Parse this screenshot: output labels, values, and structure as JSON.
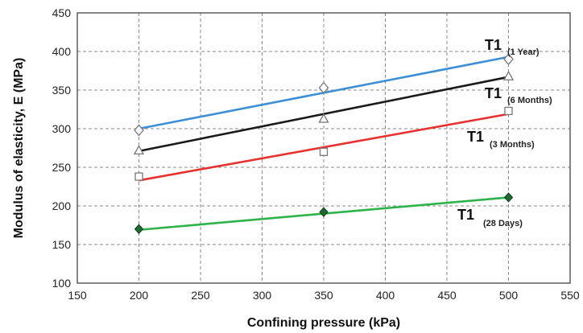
{
  "chart_data": {
    "type": "scatter",
    "title": "",
    "xlabel": "Confining pressure (kPa)",
    "ylabel": "Modulus of elasticity, E (MPa)",
    "xlim": [
      150,
      550
    ],
    "ylim": [
      100,
      450
    ],
    "x_ticks": [
      "150",
      "200",
      "250",
      "300",
      "350",
      "400",
      "450",
      "500",
      "550"
    ],
    "y_ticks": [
      "100",
      "150",
      "200",
      "250",
      "300",
      "350",
      "400",
      "450"
    ],
    "grid": true,
    "series": [
      {
        "label_main": "T1",
        "label_sub": "(1 Year)",
        "color": "#3c8fd6",
        "marker": "diamond-open",
        "points": [
          [
            200,
            298
          ],
          [
            350,
            353
          ],
          [
            500,
            390
          ]
        ],
        "fit": [
          [
            200,
            300
          ],
          [
            500,
            393
          ]
        ]
      },
      {
        "label_main": "T1",
        "label_sub": "(6 Months)",
        "color": "#1a1a1a",
        "marker": "triangle-open",
        "points": [
          [
            200,
            272
          ],
          [
            350,
            313
          ],
          [
            500,
            368
          ]
        ],
        "fit": [
          [
            200,
            271
          ],
          [
            500,
            367
          ]
        ]
      },
      {
        "label_main": "T1",
        "label_sub": "(3 Months)",
        "color": "#e8312f",
        "marker": "square-open",
        "points": [
          [
            200,
            238
          ],
          [
            350,
            270
          ],
          [
            500,
            323
          ]
        ],
        "fit": [
          [
            200,
            233
          ],
          [
            500,
            319
          ]
        ]
      },
      {
        "label_main": "T1",
        "label_sub": "(28 Days)",
        "color": "#2db34a",
        "marker": "diamond-filled",
        "points": [
          [
            200,
            170
          ],
          [
            350,
            192
          ],
          [
            500,
            211
          ]
        ],
        "fit": [
          [
            200,
            169
          ],
          [
            500,
            211
          ]
        ]
      }
    ]
  }
}
